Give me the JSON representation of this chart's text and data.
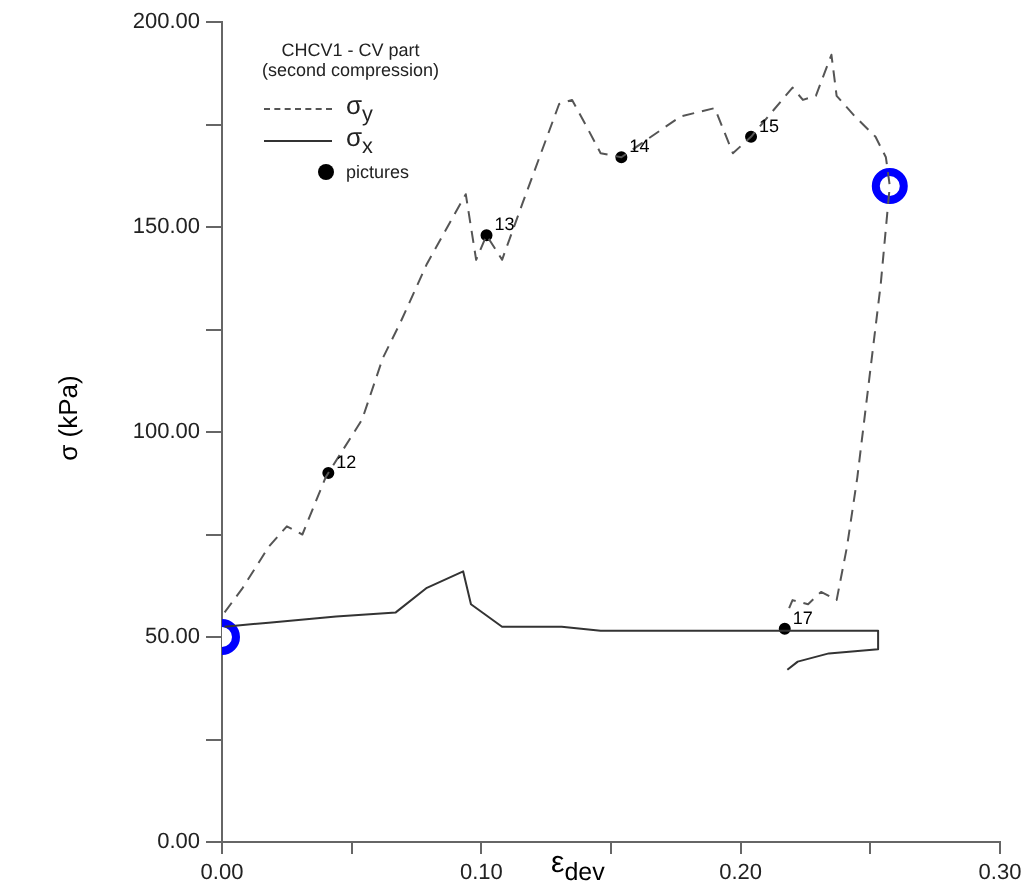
{
  "chart_data": {
    "type": "line",
    "xlabel": "ε$_{dev}$",
    "ylabel": "σ (kPa)",
    "legend_title": "CHCV1 - CV part\n(second compression)",
    "legend": "top left",
    "grid": false,
    "annotations": [
      {
        "text": "12",
        "x": 0.041,
        "y": 90
      },
      {
        "text": "13",
        "x": 0.102,
        "y": 148
      },
      {
        "text": "14",
        "x": 0.154,
        "y": 167
      },
      {
        "text": "15",
        "x": 0.204,
        "y": 172
      },
      {
        "text": "17",
        "x": 0.217,
        "y": 52
      }
    ],
    "xlim": [
      0,
      0.3
    ],
    "xticks": [
      {
        "value": 0,
        "label": "0.00"
      },
      {
        "value": 0.05,
        "label": null
      },
      {
        "value": 0.1,
        "label": "0.10"
      },
      {
        "value": 0.15,
        "label": null
      },
      {
        "value": 0.2,
        "label": "0.20"
      },
      {
        "value": 0.25,
        "label": null
      },
      {
        "value": 0.3,
        "label": "0.30"
      }
    ],
    "ylim": [
      0,
      200
    ],
    "yticks": [
      {
        "value": 0,
        "label": "0.00"
      },
      {
        "value": 25,
        "label": null
      },
      {
        "value": 50,
        "label": "50.00"
      },
      {
        "value": 75,
        "label": null
      },
      {
        "value": 100,
        "label": "100.00"
      },
      {
        "value": 125,
        "label": null
      },
      {
        "value": 150,
        "label": "150.00"
      },
      {
        "value": 175,
        "label": null
      },
      {
        "value": 200,
        "label": "200.00"
      }
    ],
    "series": [
      {
        "name": "σ$_{y}$",
        "line_style": "dashed",
        "marker": "none",
        "color": "#555555",
        "x": [
          0.001,
          0.008,
          0.018,
          0.025,
          0.031,
          0.04,
          0.054,
          0.062,
          0.069,
          0.079,
          0.094,
          0.098,
          0.102,
          0.108,
          0.116,
          0.123,
          0.13,
          0.135,
          0.141,
          0.146,
          0.154,
          0.17,
          0.177,
          0.19,
          0.197,
          0.204,
          0.216,
          0.22,
          0.224,
          0.229,
          0.235,
          0.237,
          0.244,
          0.252,
          0.256,
          0.2575,
          0.254,
          0.245,
          0.241,
          0.237,
          0.231,
          0.226,
          0.22,
          0.218
        ],
        "values": [
          56,
          62,
          72,
          77,
          75,
          89,
          103,
          118,
          127,
          141,
          158,
          142,
          148,
          142,
          156,
          168,
          180,
          181,
          174,
          168,
          167,
          174,
          177,
          179,
          168,
          172,
          181,
          184,
          181,
          182,
          192,
          182,
          177,
          172,
          167,
          160,
          136,
          89,
          72,
          59,
          61,
          58,
          59,
          56
        ]
      },
      {
        "name": "σ$_{x}$",
        "line_style": "solid",
        "marker": "none",
        "color": "#333333",
        "x": [
          0.001,
          0.018,
          0.044,
          0.067,
          0.079,
          0.093,
          0.096,
          0.108,
          0.131,
          0.146,
          0.218,
          0.253,
          0.253,
          0.234,
          0.222,
          0.218
        ],
        "values": [
          52.5,
          53.5,
          55,
          56,
          62,
          66,
          58,
          52.5,
          52.5,
          51.5,
          51.5,
          51.5,
          47,
          46,
          44,
          42
        ]
      },
      {
        "name": "pictures",
        "type": "scatter",
        "marker": "circle",
        "color": "#000000",
        "x": [
          0.041,
          0.102,
          0.154,
          0.204,
          0.217
        ],
        "values": [
          90,
          148,
          167,
          172,
          52
        ]
      },
      {
        "type": "scatter",
        "marker": "circle",
        "color": "#0000ff",
        "x": [
          0,
          0.2575
        ],
        "values": [
          50,
          160
        ]
      }
    ]
  }
}
